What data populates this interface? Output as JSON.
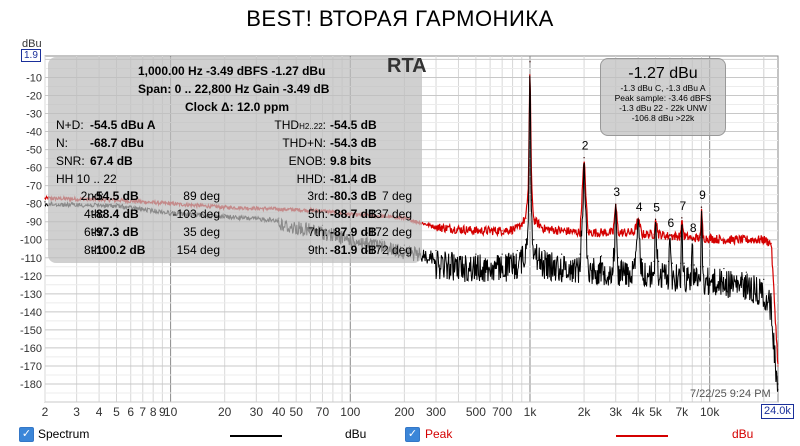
{
  "title": "BEST! ВТОРАЯ ГАРМОНИКА",
  "unit_label": "dBu",
  "y_max_box": "1.9",
  "x_max_box": "24.0k",
  "rta_label": "RTA",
  "timestamp": "7/22/25 9:24 PM",
  "colors": {
    "spectrum": "#000000",
    "peak": "#d40000",
    "panel": "#bebebe",
    "accent": "#1a2f9a"
  },
  "info": {
    "line1": "1,000.00 Hz  -3.49 dBFS  -1.27 dBu",
    "line2": "Span: 0 .. 22,800 Hz  Gain -3.49 dB",
    "line3": "Clock Δ: 12.0 ppm",
    "rows": [
      {
        "l_label": "N+D:",
        "l_value": "-54.5 dBu A",
        "r_label": "THD",
        "r_sub": "H2..22",
        "r_tail": ":",
        "r_value": "-54.5 dB"
      },
      {
        "l_label": "N:",
        "l_value": "-68.7 dBu",
        "r_label": "THD+N:",
        "r_sub": "",
        "r_tail": "",
        "r_value": "-54.3 dB"
      },
      {
        "l_label": "SNR:",
        "l_value": "67.4 dB",
        "r_label": "ENOB:",
        "r_sub": "",
        "r_tail": "",
        "r_value": "9.8 bits"
      },
      {
        "l_label": "HH 10 .. 22",
        "l_value": "",
        "r_label": "HHD:",
        "r_sub": "",
        "r_tail": "",
        "r_value": "-81.4 dB"
      }
    ],
    "harmonics": [
      {
        "left_label": "2nd:",
        "left_value": "-54.5 dB",
        "left_phase": "89 deg",
        "right_label": "3rd:",
        "right_value": "-80.3 dB",
        "right_phase": "7 deg"
      },
      {
        "left_label": "4th:",
        "left_value": "-88.4 dB",
        "left_phase": "-103 deg",
        "right_label": "5th:",
        "right_value": "-88.7 dB",
        "right_phase": "137 deg"
      },
      {
        "left_label": "6th:",
        "left_value": "-97.3 dB",
        "left_phase": "35 deg",
        "right_label": "7th:",
        "right_value": "-87.9 dB",
        "right_phase": "-172 deg"
      },
      {
        "left_label": "8th:",
        "left_value": "-100.2 dB",
        "left_phase": "154 deg",
        "right_label": "9th:",
        "right_value": "-81.9 dB",
        "right_phase": "-172 deg"
      }
    ]
  },
  "readout": {
    "main": "-1.27 dBu",
    "l1": "-1.3 dBu C, -1.3 dBu A",
    "l2": "Peak sample: -3.46 dBFS",
    "l3": "-1.3 dBu 22 - 22k UNW",
    "l4": "-106.8 dBu >22k"
  },
  "legend": {
    "spectrum_label": "Spectrum",
    "spectrum_unit": "dBu",
    "peak_label": "Peak",
    "peak_unit": "dBu"
  },
  "chart_data": {
    "type": "line",
    "title": "BEST! ВТОРАЯ ГАРМОНИКА",
    "xlabel": "",
    "ylabel": "dBu",
    "x_scale": "log",
    "xlim": [
      2,
      24000
    ],
    "ylim": [
      -190,
      1.9
    ],
    "y_ticks": [
      -10,
      -20,
      -30,
      -40,
      -50,
      -60,
      -70,
      -80,
      -90,
      -100,
      -110,
      -120,
      -130,
      -140,
      -150,
      -160,
      -170,
      -180
    ],
    "x_ticks": [
      {
        "v": 2,
        "t": "2"
      },
      {
        "v": 3,
        "t": "3"
      },
      {
        "v": 4,
        "t": "4"
      },
      {
        "v": 5,
        "t": "5"
      },
      {
        "v": 6,
        "t": "6"
      },
      {
        "v": 7,
        "t": "7"
      },
      {
        "v": 8,
        "t": "8"
      },
      {
        "v": 9,
        "t": "9"
      },
      {
        "v": 10,
        "t": "10"
      },
      {
        "v": 20,
        "t": "20"
      },
      {
        "v": 30,
        "t": "30"
      },
      {
        "v": 40,
        "t": "40"
      },
      {
        "v": 50,
        "t": "50"
      },
      {
        "v": 70,
        "t": "70"
      },
      {
        "v": 100,
        "t": "100"
      },
      {
        "v": 200,
        "t": "200"
      },
      {
        "v": 300,
        "t": "300"
      },
      {
        "v": 500,
        "t": "500"
      },
      {
        "v": 700,
        "t": "700"
      },
      {
        "v": 1000,
        "t": "1k"
      },
      {
        "v": 2000,
        "t": "2k"
      },
      {
        "v": 3000,
        "t": "3k"
      },
      {
        "v": 4000,
        "t": "4k"
      },
      {
        "v": 5000,
        "t": "5k"
      },
      {
        "v": 7000,
        "t": "7k"
      },
      {
        "v": 10000,
        "t": "10k"
      }
    ],
    "grid": true,
    "series": [
      {
        "name": "Peak",
        "color": "#d40000",
        "points": [
          [
            2,
            -77
          ],
          [
            5,
            -78
          ],
          [
            10,
            -80
          ],
          [
            20,
            -82
          ],
          [
            40,
            -83
          ],
          [
            70,
            -84
          ],
          [
            100,
            -86
          ],
          [
            150,
            -87
          ],
          [
            200,
            -88
          ],
          [
            300,
            -93
          ],
          [
            500,
            -95
          ],
          [
            700,
            -95
          ],
          [
            850,
            -94
          ],
          [
            950,
            -88
          ],
          [
            980,
            -70
          ],
          [
            1000,
            -1.3
          ],
          [
            1020,
            -70
          ],
          [
            1050,
            -89
          ],
          [
            1200,
            -94
          ],
          [
            1500,
            -95
          ],
          [
            1900,
            -96
          ],
          [
            2000,
            -54.5
          ],
          [
            2100,
            -96
          ],
          [
            2500,
            -96
          ],
          [
            2900,
            -96
          ],
          [
            3000,
            -80.3
          ],
          [
            3100,
            -96
          ],
          [
            3800,
            -96
          ],
          [
            4000,
            -88.4
          ],
          [
            4200,
            -97
          ],
          [
            4900,
            -97
          ],
          [
            5000,
            -88.7
          ],
          [
            5200,
            -97
          ],
          [
            5900,
            -98
          ],
          [
            6000,
            -97.3
          ],
          [
            6200,
            -98
          ],
          [
            6900,
            -98
          ],
          [
            7000,
            -87.9
          ],
          [
            7200,
            -98
          ],
          [
            7900,
            -99
          ],
          [
            8000,
            -100.2
          ],
          [
            8200,
            -99
          ],
          [
            8900,
            -99
          ],
          [
            9000,
            -81.9
          ],
          [
            9200,
            -99
          ],
          [
            12000,
            -100
          ],
          [
            16000,
            -100
          ],
          [
            20000,
            -100
          ],
          [
            22000,
            -102
          ],
          [
            24000,
            -170
          ]
        ]
      },
      {
        "name": "Spectrum",
        "color": "#000000",
        "points": [
          [
            2,
            -79
          ],
          [
            5,
            -80
          ],
          [
            10,
            -84
          ],
          [
            20,
            -86
          ],
          [
            40,
            -88
          ],
          [
            70,
            -92
          ],
          [
            100,
            -96
          ],
          [
            150,
            -100
          ],
          [
            200,
            -103
          ],
          [
            300,
            -106
          ],
          [
            500,
            -108
          ],
          [
            700,
            -108
          ],
          [
            850,
            -106
          ],
          [
            950,
            -100
          ],
          [
            980,
            -78
          ],
          [
            1000,
            -1.3
          ],
          [
            1020,
            -78
          ],
          [
            1050,
            -100
          ],
          [
            1200,
            -106
          ],
          [
            1500,
            -108
          ],
          [
            1900,
            -108
          ],
          [
            2000,
            -54.5
          ],
          [
            2100,
            -109
          ],
          [
            2500,
            -109
          ],
          [
            2900,
            -110
          ],
          [
            3000,
            -80.3
          ],
          [
            3100,
            -110
          ],
          [
            3800,
            -111
          ],
          [
            4000,
            -88.4
          ],
          [
            4200,
            -111
          ],
          [
            4900,
            -112
          ],
          [
            5000,
            -88.7
          ],
          [
            5200,
            -112
          ],
          [
            5900,
            -112
          ],
          [
            6000,
            -97.3
          ],
          [
            6200,
            -113
          ],
          [
            6900,
            -113
          ],
          [
            7000,
            -87.9
          ],
          [
            7200,
            -113
          ],
          [
            7900,
            -114
          ],
          [
            8000,
            -100.2
          ],
          [
            8200,
            -114
          ],
          [
            8900,
            -115
          ],
          [
            9000,
            -81.9
          ],
          [
            9200,
            -115
          ],
          [
            12000,
            -116
          ],
          [
            16000,
            -118
          ],
          [
            20000,
            -122
          ],
          [
            22000,
            -130
          ],
          [
            24000,
            -180
          ]
        ]
      }
    ],
    "annotations": [
      {
        "text": "2",
        "x": 2000,
        "y": -54.5
      },
      {
        "text": "3",
        "x": 3000,
        "y": -80.3
      },
      {
        "text": "4",
        "x": 4000,
        "y": -88.4
      },
      {
        "text": "5",
        "x": 5000,
        "y": -88.7
      },
      {
        "text": "6",
        "x": 6000,
        "y": -97.3
      },
      {
        "text": "7",
        "x": 7000,
        "y": -87.9
      },
      {
        "text": "8",
        "x": 8000,
        "y": -100.2
      },
      {
        "text": "9",
        "x": 9000,
        "y": -81.9
      }
    ]
  }
}
